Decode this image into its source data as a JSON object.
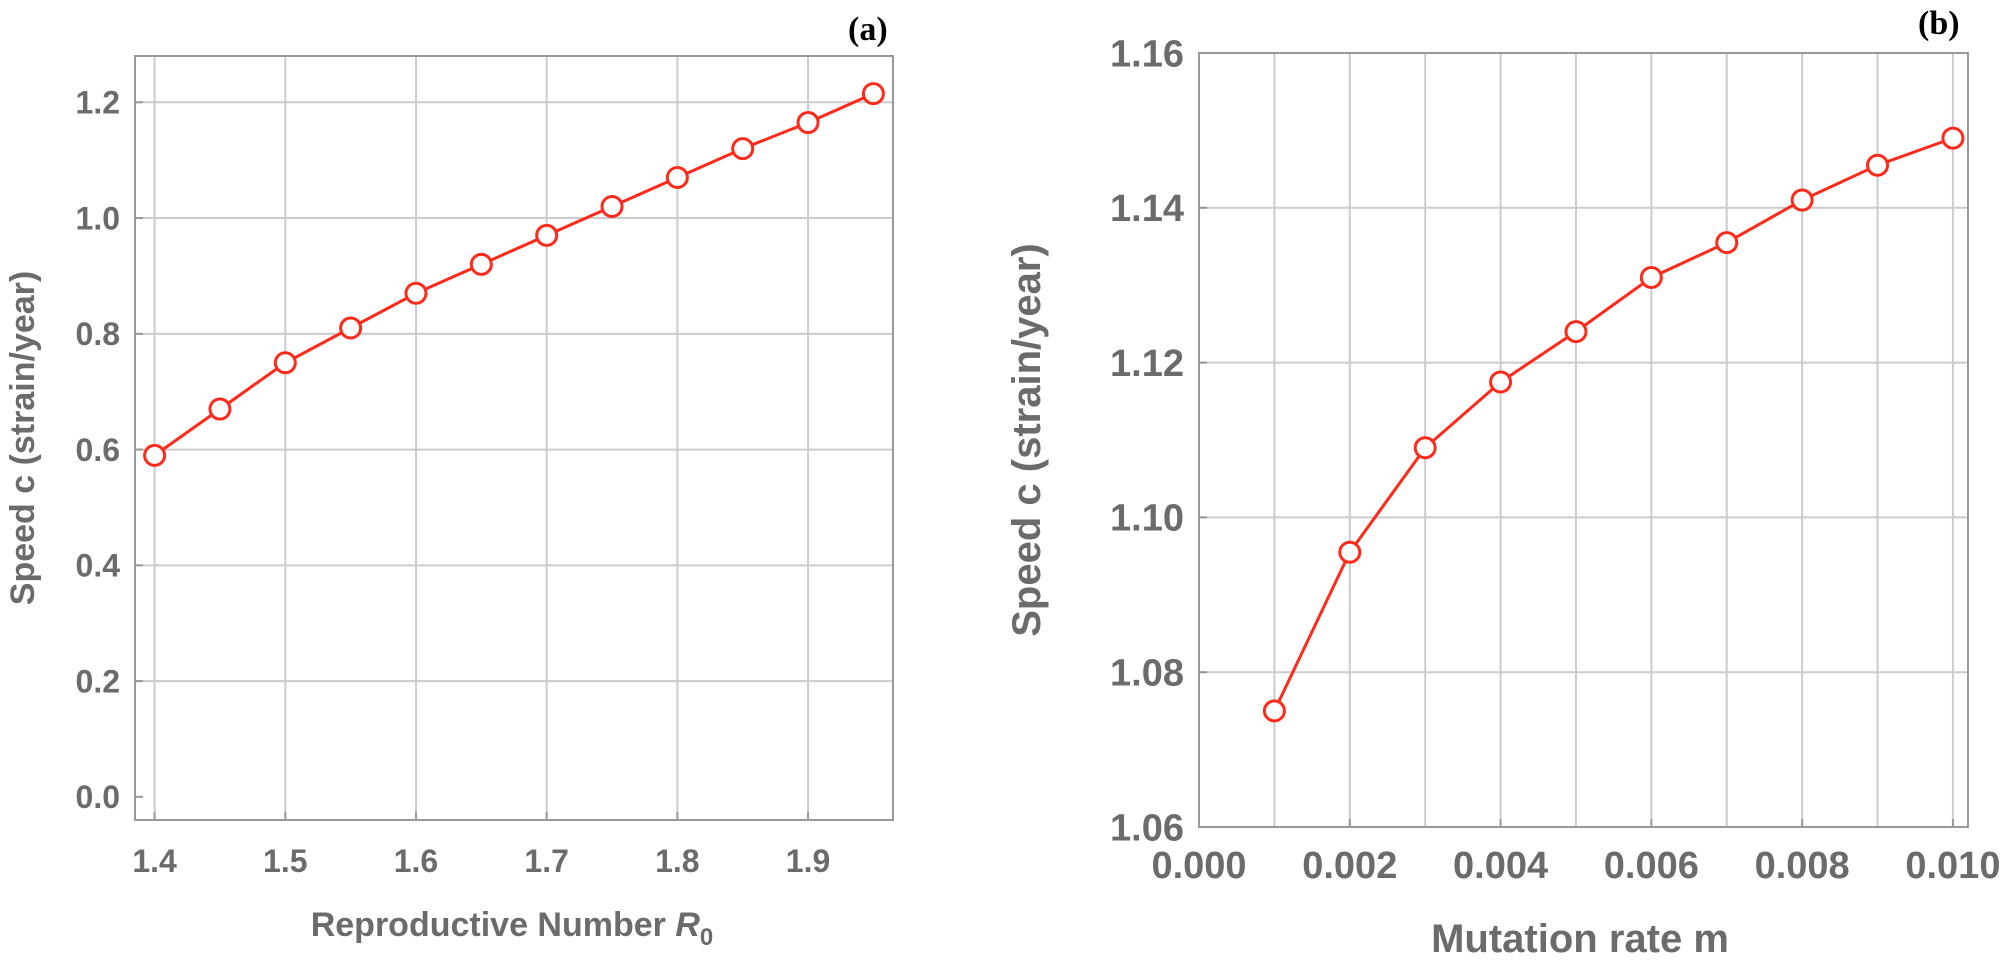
{
  "colors": {
    "series": "#ff2a1a",
    "axis_text": "#6b6b6b",
    "grid": "#cccccc",
    "frame": "#999999"
  },
  "chart_data": [
    {
      "type": "line",
      "panel_label": "(a)",
      "title": "",
      "xlabel_main": "Reproductive Number ",
      "xlabel_symbol": "R",
      "xlabel_sub": "0",
      "ylabel": "Speed  c (strain/year)",
      "xlim": [
        1.385,
        1.965
      ],
      "ylim": [
        -0.04,
        1.28
      ],
      "xticks": [
        1.4,
        1.5,
        1.6,
        1.7,
        1.8,
        1.9
      ],
      "xtick_labels": [
        "1.4",
        "1.5",
        "1.6",
        "1.7",
        "1.8",
        "1.9"
      ],
      "yticks": [
        0.0,
        0.2,
        0.4,
        0.6,
        0.8,
        1.0,
        1.2
      ],
      "ytick_labels": [
        "0.0",
        "0.2",
        "0.4",
        "0.6",
        "0.8",
        "1.0",
        "1.2"
      ],
      "xgrid": [
        1.4,
        1.5,
        1.6,
        1.7,
        1.8,
        1.9
      ],
      "ygrid": [
        0.2,
        0.4,
        0.6,
        0.8,
        1.0,
        1.2
      ],
      "grid": true,
      "marker": "open-circle",
      "series": [
        {
          "name": "speed",
          "x": [
            1.4,
            1.45,
            1.5,
            1.55,
            1.6,
            1.65,
            1.7,
            1.75,
            1.8,
            1.85,
            1.9,
            1.95
          ],
          "y": [
            0.59,
            0.67,
            0.75,
            0.81,
            0.87,
            0.92,
            0.97,
            1.02,
            1.07,
            1.12,
            1.165,
            1.215
          ]
        }
      ]
    },
    {
      "type": "line",
      "panel_label": "(b)",
      "title": "",
      "xlabel_main": "Mutation rate m",
      "xlabel_symbol": "",
      "xlabel_sub": "",
      "ylabel": "Speed  c (strain/year)",
      "xlim": [
        0.0,
        0.0102
      ],
      "ylim": [
        1.06,
        1.16
      ],
      "xticks": [
        0.0,
        0.002,
        0.004,
        0.006,
        0.008,
        0.01
      ],
      "xtick_labels": [
        "0.000",
        "0.002",
        "0.004",
        "0.006",
        "0.008",
        "0.010"
      ],
      "yticks": [
        1.06,
        1.08,
        1.1,
        1.12,
        1.14,
        1.16
      ],
      "ytick_labels": [
        "1.06",
        "1.08",
        "1.10",
        "1.12",
        "1.14",
        "1.16"
      ],
      "xgrid": [
        0.001,
        0.002,
        0.003,
        0.004,
        0.005,
        0.006,
        0.007,
        0.008,
        0.009,
        0.01
      ],
      "ygrid": [
        1.08,
        1.1,
        1.12,
        1.14
      ],
      "grid": true,
      "marker": "open-circle",
      "series": [
        {
          "name": "speed",
          "x": [
            0.001,
            0.002,
            0.003,
            0.004,
            0.005,
            0.006,
            0.007,
            0.008,
            0.009,
            0.01
          ],
          "y": [
            1.075,
            1.0955,
            1.109,
            1.1175,
            1.124,
            1.131,
            1.1355,
            1.141,
            1.1455,
            1.149
          ]
        }
      ]
    }
  ]
}
